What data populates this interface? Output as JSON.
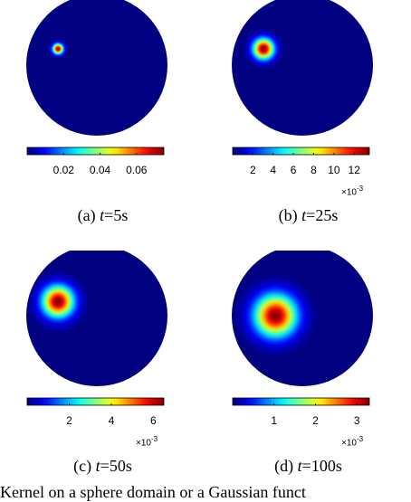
{
  "chart_data": [
    {
      "type": "heatmap",
      "caption_tag": "(a)",
      "caption_var": "t",
      "caption_value": "=5s",
      "colorbar_ticks": [
        0.02,
        0.04,
        0.06
      ],
      "colorbar_tick_labels": [
        "0.02",
        "0.04",
        "0.06"
      ],
      "colorbar_range": [
        0,
        0.075
      ],
      "colorbar_exponent": "",
      "peak_value": 0.075,
      "blob_center": [
        -0.55,
        0.23
      ],
      "blob_sigma": 0.05
    },
    {
      "type": "heatmap",
      "caption_tag": "(b)",
      "caption_var": "t",
      "caption_value": "=25s",
      "colorbar_ticks": [
        2,
        4,
        6,
        8,
        10,
        12
      ],
      "colorbar_tick_labels": [
        "2",
        "4",
        "6",
        "8",
        "10",
        "12"
      ],
      "colorbar_range": [
        0,
        13.5
      ],
      "colorbar_exponent": "-3",
      "peak_value": 13.5,
      "blob_center": [
        -0.55,
        0.23
      ],
      "blob_sigma": 0.1
    },
    {
      "type": "heatmap",
      "caption_tag": "(c)",
      "caption_var": "t",
      "caption_value": "=50s",
      "colorbar_ticks": [
        2,
        4,
        6
      ],
      "colorbar_tick_labels": [
        "2",
        "4",
        "6"
      ],
      "colorbar_range": [
        0,
        6.5
      ],
      "colorbar_exponent": "-3",
      "peak_value": 6.5,
      "blob_center": [
        -0.55,
        0.2
      ],
      "blob_sigma": 0.15
    },
    {
      "type": "heatmap",
      "caption_tag": "(d)",
      "caption_var": "t",
      "caption_value": "=100s",
      "colorbar_ticks": [
        1,
        2,
        3
      ],
      "colorbar_tick_labels": [
        "1",
        "2",
        "3"
      ],
      "colorbar_range": [
        0,
        3.3
      ],
      "colorbar_exponent": "-3",
      "peak_value": 3.3,
      "blob_center": [
        -0.38,
        0.0
      ],
      "blob_sigma": 0.2
    }
  ],
  "exponent_prefix": "×10",
  "bottom_text": "Kernel on a sphere domain or a Gaussian funct"
}
